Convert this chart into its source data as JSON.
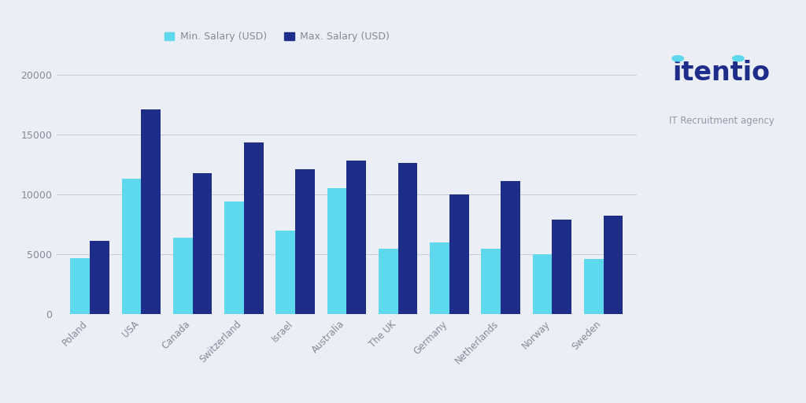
{
  "categories": [
    "Poland",
    "USA",
    "Canada",
    "Switzerland",
    "Israel",
    "Australia",
    "The UK",
    "Germany",
    "Netherlands",
    "Norway",
    "Sweden"
  ],
  "min_salary": [
    4700,
    11300,
    6400,
    9400,
    7000,
    10500,
    5500,
    6000,
    5500,
    5000,
    4600
  ],
  "max_salary": [
    6100,
    17100,
    11800,
    14300,
    12100,
    12800,
    12600,
    10000,
    11100,
    7900,
    8200
  ],
  "min_color": "#5DD8ED",
  "max_color": "#1E2D8A",
  "background_color": "#ECEEF6",
  "yticks": [
    0,
    5000,
    10000,
    15000,
    20000
  ],
  "legend_min_label": "Min. Salary (USD)",
  "legend_max_label": "Max. Salary (USD)",
  "bar_width": 0.38,
  "grid_color": "#C8CADE",
  "tick_label_color": "#888899",
  "logo_color": "#1E2D8A",
  "logo_sub_color": "#9099AA",
  "logo_text_itentio": "itentio",
  "logo_text_sub": "IT Recruitment agency",
  "logo_dot_color": "#5DD8ED"
}
